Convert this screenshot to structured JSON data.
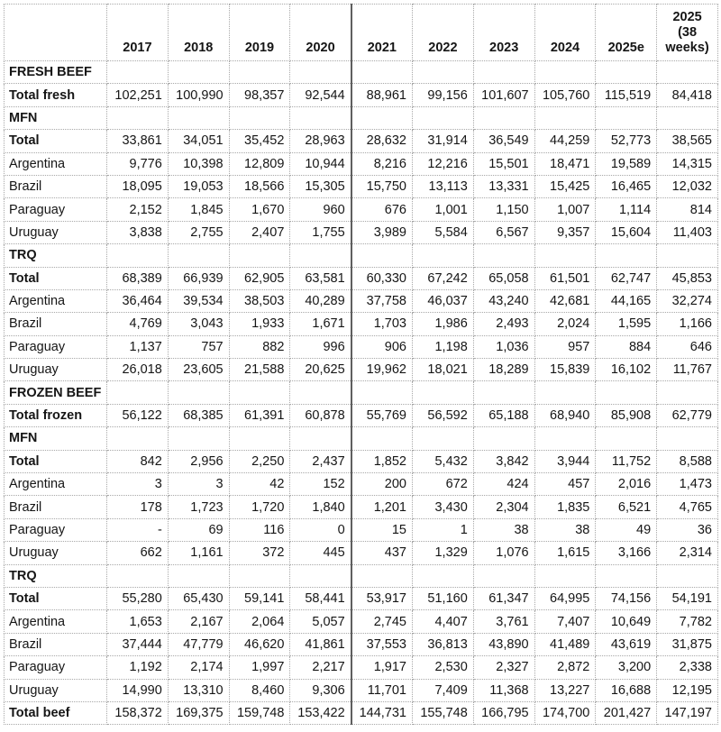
{
  "chart_data": {
    "type": "table",
    "title": "",
    "columns": [
      "2017",
      "2018",
      "2019",
      "2020",
      "2021",
      "2022",
      "2023",
      "2024",
      "2025e",
      "2025\n(38\nweeks)"
    ],
    "rows": [
      {
        "label": "FRESH BEEF",
        "style": "section",
        "values": [
          "",
          "",
          "",
          "",
          "",
          "",
          "",
          "",
          "",
          ""
        ]
      },
      {
        "label": "Total fresh",
        "style": "total",
        "values": [
          "102,251",
          "100,990",
          "98,357",
          "92,544",
          "88,961",
          "99,156",
          "101,607",
          "105,760",
          "115,519",
          "84,418"
        ]
      },
      {
        "label": "MFN",
        "style": "section",
        "values": [
          "",
          "",
          "",
          "",
          "",
          "",
          "",
          "",
          "",
          ""
        ]
      },
      {
        "label": "Total",
        "style": "total",
        "values": [
          "33,861",
          "34,051",
          "35,452",
          "28,963",
          "28,632",
          "31,914",
          "36,549",
          "44,259",
          "52,773",
          "38,565"
        ]
      },
      {
        "label": "Argentina",
        "style": "country",
        "values": [
          "9,776",
          "10,398",
          "12,809",
          "10,944",
          "8,216",
          "12,216",
          "15,501",
          "18,471",
          "19,589",
          "14,315"
        ]
      },
      {
        "label": "Brazil",
        "style": "country",
        "values": [
          "18,095",
          "19,053",
          "18,566",
          "15,305",
          "15,750",
          "13,113",
          "13,331",
          "15,425",
          "16,465",
          "12,032"
        ]
      },
      {
        "label": "Paraguay",
        "style": "country",
        "values": [
          "2,152",
          "1,845",
          "1,670",
          "960",
          "676",
          "1,001",
          "1,150",
          "1,007",
          "1,114",
          "814"
        ]
      },
      {
        "label": "Uruguay",
        "style": "country",
        "values": [
          "3,838",
          "2,755",
          "2,407",
          "1,755",
          "3,989",
          "5,584",
          "6,567",
          "9,357",
          "15,604",
          "11,403"
        ]
      },
      {
        "label": "TRQ",
        "style": "section",
        "values": [
          "",
          "",
          "",
          "",
          "",
          "",
          "",
          "",
          "",
          ""
        ]
      },
      {
        "label": "Total",
        "style": "total",
        "values": [
          "68,389",
          "66,939",
          "62,905",
          "63,581",
          "60,330",
          "67,242",
          "65,058",
          "61,501",
          "62,747",
          "45,853"
        ]
      },
      {
        "label": "Argentina",
        "style": "country",
        "values": [
          "36,464",
          "39,534",
          "38,503",
          "40,289",
          "37,758",
          "46,037",
          "43,240",
          "42,681",
          "44,165",
          "32,274"
        ]
      },
      {
        "label": "Brazil",
        "style": "country",
        "values": [
          "4,769",
          "3,043",
          "1,933",
          "1,671",
          "1,703",
          "1,986",
          "2,493",
          "2,024",
          "1,595",
          "1,166"
        ]
      },
      {
        "label": "Paraguay",
        "style": "country",
        "values": [
          "1,137",
          "757",
          "882",
          "996",
          "906",
          "1,198",
          "1,036",
          "957",
          "884",
          "646"
        ]
      },
      {
        "label": "Uruguay",
        "style": "country",
        "values": [
          "26,018",
          "23,605",
          "21,588",
          "20,625",
          "19,962",
          "18,021",
          "18,289",
          "15,839",
          "16,102",
          "11,767"
        ]
      },
      {
        "label": "FROZEN BEEF",
        "style": "section",
        "values": [
          "",
          "",
          "",
          "",
          "",
          "",
          "",
          "",
          "",
          ""
        ]
      },
      {
        "label": "Total frozen",
        "style": "total",
        "values": [
          "56,122",
          "68,385",
          "61,391",
          "60,878",
          "55,769",
          "56,592",
          "65,188",
          "68,940",
          "85,908",
          "62,779"
        ]
      },
      {
        "label": "MFN",
        "style": "section",
        "values": [
          "",
          "",
          "",
          "",
          "",
          "",
          "",
          "",
          "",
          ""
        ]
      },
      {
        "label": "Total",
        "style": "total",
        "values": [
          "842",
          "2,956",
          "2,250",
          "2,437",
          "1,852",
          "5,432",
          "3,842",
          "3,944",
          "11,752",
          "8,588"
        ]
      },
      {
        "label": "Argentina",
        "style": "country",
        "values": [
          "3",
          "3",
          "42",
          "152",
          "200",
          "672",
          "424",
          "457",
          "2,016",
          "1,473"
        ]
      },
      {
        "label": "Brazil",
        "style": "country",
        "values": [
          "178",
          "1,723",
          "1,720",
          "1,840",
          "1,201",
          "3,430",
          "2,304",
          "1,835",
          "6,521",
          "4,765"
        ]
      },
      {
        "label": "Paraguay",
        "style": "country",
        "values": [
          "-",
          "69",
          "116",
          "0",
          "15",
          "1",
          "38",
          "38",
          "49",
          "36"
        ]
      },
      {
        "label": "Uruguay",
        "style": "country",
        "values": [
          "662",
          "1,161",
          "372",
          "445",
          "437",
          "1,329",
          "1,076",
          "1,615",
          "3,166",
          "2,314"
        ]
      },
      {
        "label": "TRQ",
        "style": "section",
        "values": [
          "",
          "",
          "",
          "",
          "",
          "",
          "",
          "",
          "",
          ""
        ]
      },
      {
        "label": "Total",
        "style": "total",
        "values": [
          "55,280",
          "65,430",
          "59,141",
          "58,441",
          "53,917",
          "51,160",
          "61,347",
          "64,995",
          "74,156",
          "54,191"
        ]
      },
      {
        "label": "Argentina",
        "style": "country",
        "values": [
          "1,653",
          "2,167",
          "2,064",
          "5,057",
          "2,745",
          "4,407",
          "3,761",
          "7,407",
          "10,649",
          "7,782"
        ]
      },
      {
        "label": "Brazil",
        "style": "country",
        "values": [
          "37,444",
          "47,779",
          "46,620",
          "41,861",
          "37,553",
          "36,813",
          "43,890",
          "41,489",
          "43,619",
          "31,875"
        ]
      },
      {
        "label": "Paraguay",
        "style": "country",
        "values": [
          "1,192",
          "2,174",
          "1,997",
          "2,217",
          "1,917",
          "2,530",
          "2,327",
          "2,872",
          "3,200",
          "2,338"
        ]
      },
      {
        "label": "Uruguay",
        "style": "country",
        "values": [
          "14,990",
          "13,310",
          "8,460",
          "9,306",
          "11,701",
          "7,409",
          "11,368",
          "13,227",
          "16,688",
          "12,195"
        ]
      },
      {
        "label": "Total beef",
        "style": "total",
        "values": [
          "158,372",
          "169,375",
          "159,748",
          "153,422",
          "144,731",
          "155,748",
          "166,795",
          "174,700",
          "201,427",
          "147,197"
        ]
      }
    ]
  }
}
